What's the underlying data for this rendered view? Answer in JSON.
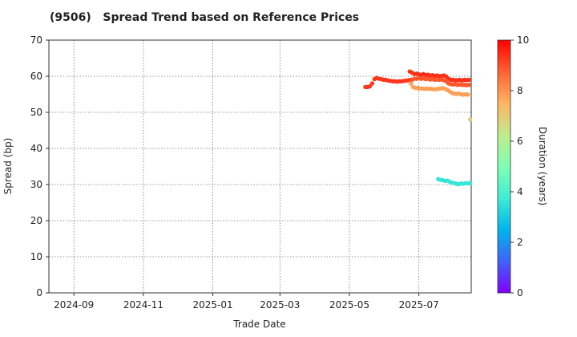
{
  "chart_data": {
    "type": "scatter",
    "title": "(9506)   Spread Trend based on Reference Prices",
    "xlabel": "Trade Date",
    "ylabel": "Spread (bp)",
    "colorbar_label": "Duration (years)",
    "x_tick_labels": [
      "2024-09",
      "2024-11",
      "2025-01",
      "2025-03",
      "2025-05",
      "2025-07"
    ],
    "x_ticks": [
      "2024-09-01",
      "2024-11-01",
      "2025-01-01",
      "2025-03-01",
      "2025-05-01",
      "2025-07-01"
    ],
    "xlim": [
      "2024-08-10",
      "2025-08-16"
    ],
    "ylim": [
      0,
      70
    ],
    "y_ticks": [
      0,
      10,
      20,
      30,
      40,
      50,
      60,
      70
    ],
    "colorbar_range": [
      0,
      10
    ],
    "colorbar_ticks": [
      0,
      2,
      4,
      6,
      8,
      10
    ],
    "colormap": "rainbow",
    "grid": true,
    "series": [
      {
        "duration": 9.3,
        "points": [
          [
            "2025-05-15",
            57.0
          ],
          [
            "2025-05-17",
            57.0
          ],
          [
            "2025-05-19",
            57.2
          ],
          [
            "2025-05-21",
            58.0
          ],
          [
            "2025-05-23",
            59.2
          ],
          [
            "2025-05-25",
            59.5
          ],
          [
            "2025-05-27",
            59.3
          ],
          [
            "2025-05-29",
            59.2
          ],
          [
            "2025-05-31",
            59.0
          ],
          [
            "2025-06-02",
            59.0
          ],
          [
            "2025-06-04",
            58.8
          ],
          [
            "2025-06-06",
            58.7
          ],
          [
            "2025-06-08",
            58.6
          ],
          [
            "2025-06-10",
            58.6
          ],
          [
            "2025-06-12",
            58.5
          ],
          [
            "2025-06-14",
            58.6
          ],
          [
            "2025-06-16",
            58.6
          ],
          [
            "2025-06-18",
            58.7
          ],
          [
            "2025-06-20",
            58.8
          ],
          [
            "2025-06-22",
            58.9
          ],
          [
            "2025-06-24",
            59.0
          ]
        ]
      },
      {
        "duration": 9.4,
        "points": [
          [
            "2025-06-23",
            61.3
          ],
          [
            "2025-06-25",
            61.0
          ],
          [
            "2025-06-27",
            60.6
          ],
          [
            "2025-06-29",
            60.7
          ],
          [
            "2025-07-01",
            60.5
          ],
          [
            "2025-07-03",
            60.4
          ],
          [
            "2025-07-05",
            60.6
          ],
          [
            "2025-07-07",
            60.3
          ],
          [
            "2025-07-09",
            60.4
          ],
          [
            "2025-07-11",
            60.2
          ],
          [
            "2025-07-13",
            60.3
          ],
          [
            "2025-07-15",
            60.1
          ],
          [
            "2025-07-17",
            60.2
          ],
          [
            "2025-07-19",
            60.0
          ],
          [
            "2025-07-21",
            60.1
          ],
          [
            "2025-07-23",
            60.2
          ],
          [
            "2025-07-25",
            59.9
          ],
          [
            "2025-07-27",
            59.3
          ],
          [
            "2025-07-29",
            59.0
          ],
          [
            "2025-07-31",
            59.0
          ],
          [
            "2025-08-02",
            58.9
          ],
          [
            "2025-08-04",
            58.9
          ],
          [
            "2025-08-06",
            59.0
          ],
          [
            "2025-08-08",
            58.8
          ],
          [
            "2025-08-10",
            59.0
          ],
          [
            "2025-08-12",
            58.9
          ],
          [
            "2025-08-14",
            59.0
          ]
        ]
      },
      {
        "duration": 8.9,
        "points": [
          [
            "2025-06-25",
            59.0
          ],
          [
            "2025-06-27",
            59.3
          ],
          [
            "2025-06-29",
            59.3
          ],
          [
            "2025-07-01",
            59.4
          ],
          [
            "2025-07-03",
            59.3
          ],
          [
            "2025-07-05",
            59.4
          ],
          [
            "2025-07-07",
            59.2
          ],
          [
            "2025-07-09",
            59.3
          ],
          [
            "2025-07-11",
            59.1
          ],
          [
            "2025-07-13",
            59.2
          ],
          [
            "2025-07-15",
            59.0
          ],
          [
            "2025-07-17",
            59.1
          ],
          [
            "2025-07-19",
            59.0
          ],
          [
            "2025-07-21",
            59.1
          ],
          [
            "2025-07-23",
            58.9
          ],
          [
            "2025-07-25",
            58.6
          ],
          [
            "2025-07-27",
            58.0
          ],
          [
            "2025-07-29",
            57.8
          ],
          [
            "2025-07-31",
            57.7
          ],
          [
            "2025-08-02",
            57.8
          ],
          [
            "2025-08-04",
            57.6
          ],
          [
            "2025-08-06",
            57.7
          ],
          [
            "2025-08-08",
            57.6
          ],
          [
            "2025-08-10",
            57.6
          ],
          [
            "2025-08-12",
            57.5
          ],
          [
            "2025-08-14",
            57.6
          ]
        ]
      },
      {
        "duration": 7.8,
        "points": [
          [
            "2025-06-24",
            58.0
          ],
          [
            "2025-06-26",
            57.0
          ],
          [
            "2025-06-28",
            56.8
          ],
          [
            "2025-06-30",
            56.7
          ],
          [
            "2025-07-02",
            56.6
          ],
          [
            "2025-07-04",
            56.6
          ],
          [
            "2025-07-06",
            56.5
          ],
          [
            "2025-07-08",
            56.6
          ],
          [
            "2025-07-10",
            56.5
          ],
          [
            "2025-07-12",
            56.5
          ],
          [
            "2025-07-14",
            56.4
          ],
          [
            "2025-07-16",
            56.4
          ],
          [
            "2025-07-18",
            56.5
          ],
          [
            "2025-07-20",
            56.6
          ],
          [
            "2025-07-22",
            56.7
          ],
          [
            "2025-07-24",
            56.5
          ],
          [
            "2025-07-26",
            56.2
          ],
          [
            "2025-07-28",
            55.8
          ],
          [
            "2025-07-30",
            55.4
          ],
          [
            "2025-08-01",
            55.2
          ],
          [
            "2025-08-03",
            55.1
          ],
          [
            "2025-08-05",
            55.2
          ],
          [
            "2025-08-07",
            55.0
          ],
          [
            "2025-08-09",
            54.9
          ],
          [
            "2025-08-11",
            55.0
          ],
          [
            "2025-08-13",
            54.9
          ]
        ]
      },
      {
        "duration": 6.9,
        "points": [
          [
            "2025-08-15",
            48.0
          ]
        ]
      },
      {
        "duration": 3.6,
        "points": [
          [
            "2025-07-18",
            31.5
          ],
          [
            "2025-07-20",
            31.3
          ],
          [
            "2025-07-22",
            31.2
          ],
          [
            "2025-07-24",
            31.0
          ],
          [
            "2025-07-26",
            31.1
          ],
          [
            "2025-07-28",
            30.8
          ],
          [
            "2025-07-30",
            30.5
          ],
          [
            "2025-08-01",
            30.4
          ],
          [
            "2025-08-03",
            30.2
          ],
          [
            "2025-08-05",
            30.1
          ],
          [
            "2025-08-07",
            30.3
          ],
          [
            "2025-08-09",
            30.2
          ],
          [
            "2025-08-11",
            30.4
          ],
          [
            "2025-08-13",
            30.3
          ],
          [
            "2025-08-15",
            30.4
          ]
        ]
      }
    ]
  }
}
